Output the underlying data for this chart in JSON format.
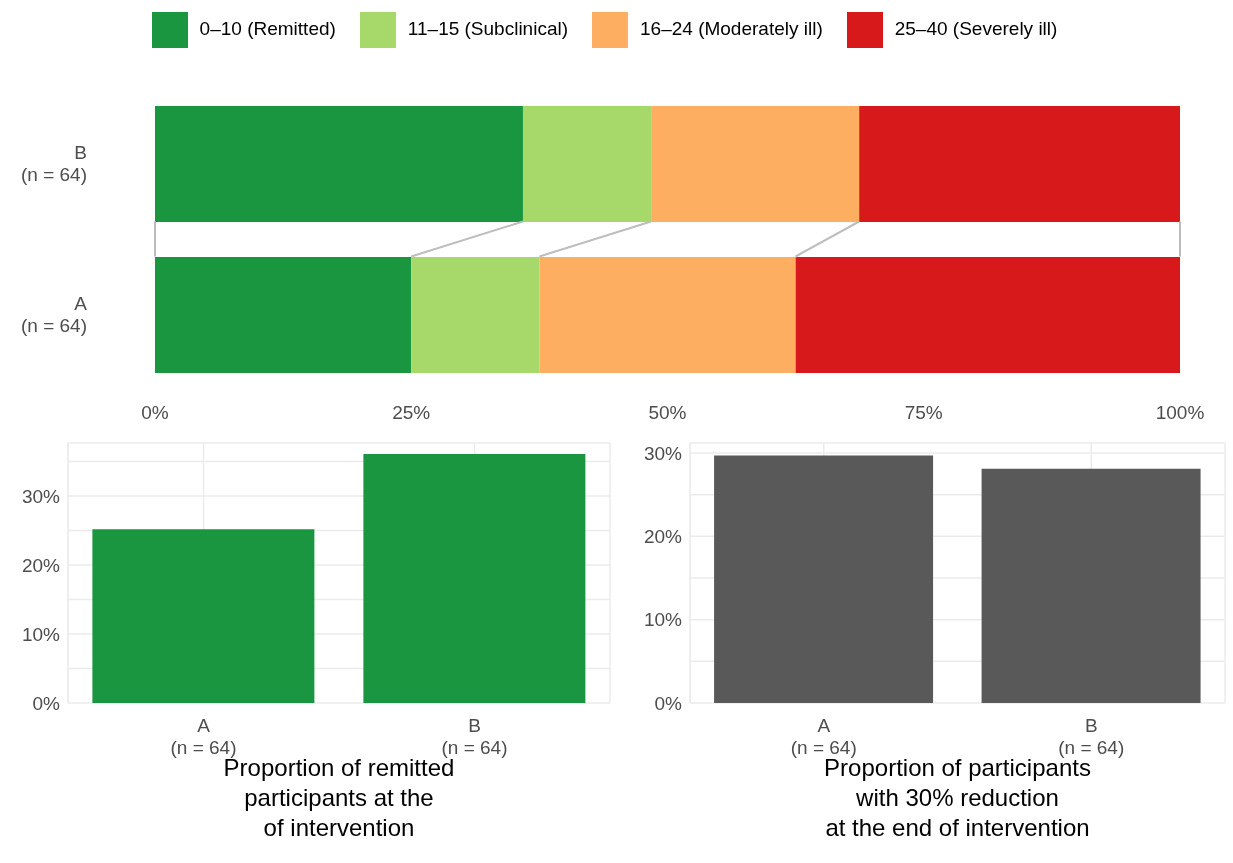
{
  "chart_data": [
    {
      "type": "bar",
      "orientation": "horizontal",
      "stacked": true,
      "categories": [
        "B\n(n = 64)",
        "A\n(n = 64)"
      ],
      "series": [
        {
          "name": "0–10 (Remitted)",
          "color": "#1a9641",
          "values": [
            35.9,
            25
          ]
        },
        {
          "name": "11–15 (Subclinical)",
          "color": "#a6d96a",
          "values": [
            12.5,
            12.5
          ]
        },
        {
          "name": "16–24 (Moderately ill)",
          "color": "#fdae61",
          "values": [
            20.3,
            25
          ]
        },
        {
          "name": "25–40 (Severely ill)",
          "color": "#d7191c",
          "values": [
            31.3,
            37.5
          ]
        }
      ],
      "xlim": [
        0,
        100
      ],
      "xticks": [
        {
          "value": 0,
          "label": "0%"
        },
        {
          "value": 25,
          "label": "25%"
        },
        {
          "value": 50,
          "label": "50%"
        },
        {
          "value": 75,
          "label": "75%"
        },
        {
          "value": 100,
          "label": "100%"
        }
      ],
      "grid": false,
      "legend": "top"
    },
    {
      "type": "bar",
      "categories": [
        "A\n(n = 64)",
        "B\n(n = 64)"
      ],
      "values": [
        25.2,
        36.1
      ],
      "color": "#1a9641",
      "xlabel": "Proportion of remitted\nparticipants at the\nof intervention",
      "ylim": [
        0,
        37.7
      ],
      "yticks": [
        {
          "value": 0,
          "label": "0%"
        },
        {
          "value": 5,
          "label": null
        },
        {
          "value": 10,
          "label": "10%"
        },
        {
          "value": 15,
          "label": null
        },
        {
          "value": 20,
          "label": "20%"
        },
        {
          "value": 25,
          "label": null
        },
        {
          "value": 30,
          "label": "30%"
        },
        {
          "value": 35,
          "label": null
        }
      ],
      "grid": true
    },
    {
      "type": "bar",
      "categories": [
        "A\n(n = 64)",
        "B\n(n = 64)"
      ],
      "values": [
        29.7,
        28.1
      ],
      "color": "#595959",
      "xlabel": "Proportion of participants\nwith 30% reduction\nat the end of intervention",
      "ylim": [
        0,
        31.2
      ],
      "yticks": [
        {
          "value": 0,
          "label": "0%"
        },
        {
          "value": 5,
          "label": null
        },
        {
          "value": 10,
          "label": "10%"
        },
        {
          "value": 15,
          "label": null
        },
        {
          "value": 20,
          "label": "20%"
        },
        {
          "value": 25,
          "label": null
        },
        {
          "value": 30,
          "label": "30%"
        }
      ],
      "grid": true
    }
  ]
}
